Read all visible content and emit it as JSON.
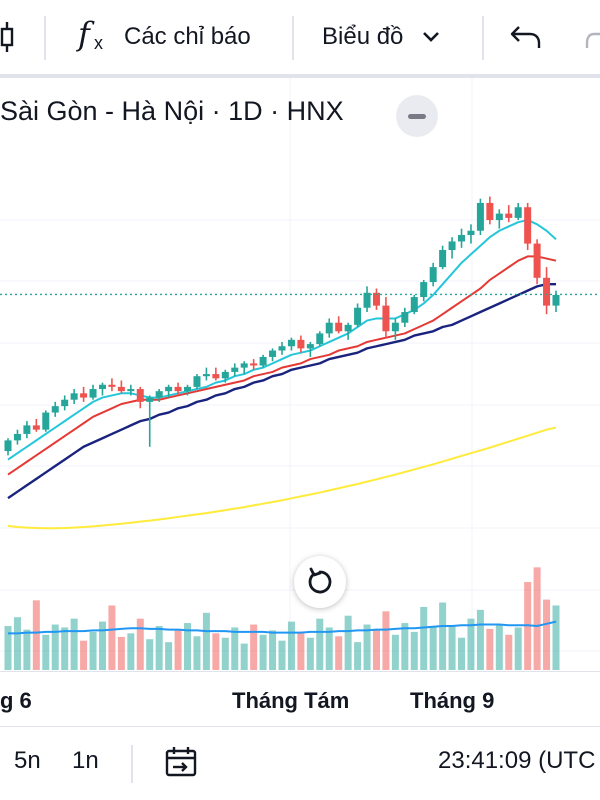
{
  "toolbar": {
    "indicators_label": "Các chỉ báo",
    "chart_type_label": "Biểu đồ"
  },
  "legend": {
    "symbol_text": "Sài Gòn - Hà Nội · 1D · HNX"
  },
  "xaxis": {
    "labels": [
      "g 6",
      "Tháng Tám",
      "Tháng 9"
    ]
  },
  "bottombar": {
    "range_5d": "5n",
    "range_1d": "1n",
    "clock": "23:41:09 (UTC"
  },
  "colors": {
    "up": "#26a69a",
    "down": "#ef5350",
    "ma_fast": "#26c6da",
    "ma_mid": "#e53935",
    "ma_slow": "#1a237e",
    "ma_long": "#ffeb3b",
    "vol_ma": "#2196f3",
    "last_price_line": "#26a69a"
  },
  "chart_data": {
    "type": "candlestick",
    "title": "",
    "xlabel": "",
    "ylabel": "",
    "x_tick_labels": [
      "g 6",
      "Tháng Tám",
      "Tháng 9"
    ],
    "grid": true,
    "note": "price values in relative chart units (axis values not visible)",
    "candles": [
      [
        10.0,
        10.6,
        9.8,
        10.5
      ],
      [
        10.5,
        11.0,
        10.3,
        10.8
      ],
      [
        10.8,
        11.4,
        10.6,
        11.2
      ],
      [
        11.2,
        11.5,
        10.9,
        11.0
      ],
      [
        11.0,
        11.9,
        10.9,
        11.8
      ],
      [
        11.8,
        12.3,
        11.6,
        12.1
      ],
      [
        12.1,
        12.6,
        11.9,
        12.4
      ],
      [
        12.4,
        12.9,
        12.2,
        12.7
      ],
      [
        12.7,
        13.0,
        12.3,
        12.5
      ],
      [
        12.5,
        13.1,
        12.4,
        12.9
      ],
      [
        12.9,
        13.2,
        12.6,
        13.1
      ],
      [
        13.1,
        13.4,
        12.8,
        13.0
      ],
      [
        13.0,
        13.3,
        12.7,
        12.8
      ],
      [
        12.8,
        13.1,
        12.6,
        12.9
      ],
      [
        12.9,
        13.0,
        12.0,
        12.3
      ],
      [
        12.3,
        12.6,
        10.2,
        12.5
      ],
      [
        12.5,
        12.9,
        12.3,
        12.8
      ],
      [
        12.8,
        13.1,
        12.5,
        13.0
      ],
      [
        13.0,
        13.2,
        12.6,
        12.8
      ],
      [
        12.8,
        13.1,
        12.6,
        13.0
      ],
      [
        13.0,
        13.6,
        12.9,
        13.5
      ],
      [
        13.5,
        13.9,
        13.3,
        13.6
      ],
      [
        13.6,
        13.9,
        13.3,
        13.4
      ],
      [
        13.4,
        13.8,
        13.2,
        13.7
      ],
      [
        13.7,
        14.1,
        13.5,
        13.9
      ],
      [
        13.9,
        14.2,
        13.6,
        14.1
      ],
      [
        14.1,
        14.3,
        13.8,
        14.0
      ],
      [
        14.0,
        14.5,
        13.9,
        14.4
      ],
      [
        14.4,
        14.8,
        14.2,
        14.7
      ],
      [
        14.7,
        15.1,
        14.5,
        14.9
      ],
      [
        14.9,
        15.3,
        14.7,
        15.2
      ],
      [
        15.2,
        15.4,
        14.6,
        14.8
      ],
      [
        14.8,
        15.1,
        14.4,
        15.0
      ],
      [
        15.0,
        15.6,
        14.9,
        15.5
      ],
      [
        15.5,
        16.2,
        15.3,
        16.0
      ],
      [
        16.0,
        16.3,
        15.5,
        15.6
      ],
      [
        15.6,
        16.0,
        15.2,
        15.9
      ],
      [
        15.9,
        16.9,
        15.8,
        16.7
      ],
      [
        16.7,
        17.7,
        16.5,
        17.4
      ],
      [
        17.4,
        17.6,
        16.6,
        16.8
      ],
      [
        16.8,
        17.2,
        15.3,
        15.6
      ],
      [
        15.6,
        16.2,
        15.2,
        16.0
      ],
      [
        16.0,
        16.7,
        15.8,
        16.5
      ],
      [
        16.5,
        17.3,
        16.4,
        17.2
      ],
      [
        17.2,
        18.0,
        17.0,
        17.9
      ],
      [
        17.9,
        18.8,
        17.7,
        18.6
      ],
      [
        18.6,
        19.6,
        18.5,
        19.4
      ],
      [
        19.4,
        20.0,
        19.0,
        19.8
      ],
      [
        19.8,
        20.4,
        19.5,
        20.1
      ],
      [
        20.1,
        20.6,
        19.7,
        20.3
      ],
      [
        20.3,
        21.8,
        20.1,
        21.6
      ],
      [
        21.6,
        21.9,
        20.6,
        20.8
      ],
      [
        20.8,
        21.3,
        20.4,
        21.1
      ],
      [
        21.1,
        21.5,
        20.7,
        20.9
      ],
      [
        20.9,
        21.6,
        20.8,
        21.4
      ],
      [
        21.4,
        21.6,
        19.4,
        19.7
      ],
      [
        19.7,
        19.9,
        17.8,
        18.1
      ],
      [
        18.1,
        18.6,
        16.4,
        16.8
      ],
      [
        16.8,
        17.5,
        16.5,
        17.3
      ]
    ],
    "volume": [
      60,
      72,
      55,
      95,
      48,
      62,
      58,
      70,
      40,
      52,
      66,
      88,
      45,
      50,
      70,
      42,
      60,
      38,
      55,
      64,
      46,
      78,
      50,
      44,
      58,
      36,
      62,
      48,
      54,
      40,
      66,
      52,
      44,
      70,
      58,
      46,
      74,
      38,
      62,
      56,
      80,
      48,
      64,
      52,
      86,
      58,
      92,
      60,
      44,
      70,
      82,
      56,
      62,
      48,
      58,
      120,
      140,
      96,
      88
    ],
    "ma_fast": [
      9.6,
      9.9,
      10.2,
      10.5,
      10.8,
      11.1,
      11.4,
      11.7,
      12.0,
      12.3,
      12.5,
      12.6,
      12.7,
      12.7,
      12.6,
      12.5,
      12.5,
      12.6,
      12.7,
      12.8,
      12.9,
      13.0,
      13.2,
      13.3,
      13.5,
      13.6,
      13.8,
      13.9,
      14.1,
      14.3,
      14.5,
      14.6,
      14.7,
      14.9,
      15.1,
      15.3,
      15.5,
      15.8,
      16.1,
      16.2,
      16.2,
      16.2,
      16.4,
      16.6,
      16.9,
      17.3,
      17.8,
      18.3,
      18.8,
      19.2,
      19.6,
      20.0,
      20.3,
      20.5,
      20.7,
      20.8,
      20.6,
      20.3,
      19.9
    ],
    "ma_mid": [
      8.9,
      9.2,
      9.5,
      9.8,
      10.1,
      10.4,
      10.7,
      11.0,
      11.3,
      11.6,
      11.8,
      12.0,
      12.2,
      12.3,
      12.4,
      12.4,
      12.4,
      12.5,
      12.6,
      12.7,
      12.8,
      12.9,
      13.0,
      13.1,
      13.2,
      13.3,
      13.5,
      13.6,
      13.7,
      13.9,
      14.0,
      14.1,
      14.3,
      14.4,
      14.5,
      14.7,
      14.8,
      14.9,
      15.1,
      15.2,
      15.3,
      15.4,
      15.5,
      15.7,
      15.9,
      16.1,
      16.4,
      16.7,
      17.0,
      17.3,
      17.6,
      18.0,
      18.3,
      18.6,
      18.9,
      19.1,
      19.1,
      19.0,
      18.9
    ],
    "ma_slow": [
      7.8,
      8.1,
      8.4,
      8.7,
      9.0,
      9.3,
      9.6,
      9.9,
      10.2,
      10.4,
      10.6,
      10.8,
      11.0,
      11.2,
      11.4,
      11.5,
      11.7,
      11.8,
      12.0,
      12.1,
      12.3,
      12.4,
      12.6,
      12.7,
      12.9,
      13.0,
      13.2,
      13.3,
      13.5,
      13.6,
      13.8,
      13.9,
      14.0,
      14.1,
      14.3,
      14.4,
      14.5,
      14.6,
      14.8,
      14.9,
      15.0,
      15.1,
      15.2,
      15.4,
      15.5,
      15.6,
      15.8,
      15.9,
      16.1,
      16.3,
      16.5,
      16.7,
      16.9,
      17.1,
      17.3,
      17.5,
      17.7,
      17.8,
      17.8
    ],
    "ma_long": [
      6.5,
      6.45,
      6.42,
      6.4,
      6.39,
      6.39,
      6.4,
      6.42,
      6.45,
      6.48,
      6.52,
      6.56,
      6.6,
      6.65,
      6.7,
      6.75,
      6.8,
      6.86,
      6.92,
      6.98,
      7.04,
      7.1,
      7.17,
      7.24,
      7.31,
      7.38,
      7.46,
      7.54,
      7.62,
      7.7,
      7.79,
      7.88,
      7.97,
      8.06,
      8.16,
      8.26,
      8.36,
      8.46,
      8.57,
      8.68,
      8.79,
      8.9,
      9.02,
      9.14,
      9.26,
      9.38,
      9.51,
      9.64,
      9.77,
      9.9,
      10.03,
      10.16,
      10.3,
      10.44,
      10.58,
      10.72,
      10.86,
      11.0,
      11.1
    ],
    "vol_ma": [
      50,
      50,
      51,
      51,
      52,
      52,
      53,
      53,
      53,
      54,
      54,
      55,
      56,
      57,
      57,
      56,
      56,
      55,
      55,
      54,
      54,
      53,
      53,
      53,
      52,
      52,
      52,
      52,
      51,
      51,
      51,
      51,
      52,
      52,
      52,
      53,
      53,
      54,
      54,
      55,
      55,
      56,
      57,
      57,
      58,
      59,
      60,
      60,
      61,
      61,
      62,
      62,
      62,
      61,
      61,
      61,
      60,
      63,
      66
    ]
  }
}
